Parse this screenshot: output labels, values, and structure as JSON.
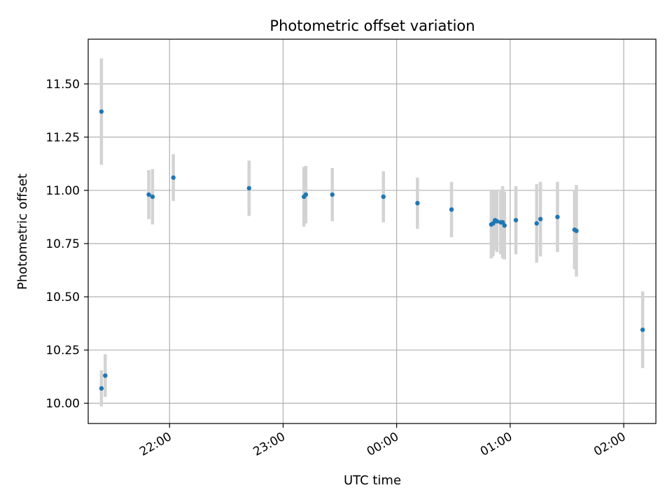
{
  "chart_data": {
    "type": "scatter",
    "title": "Photometric offset variation",
    "xlabel": "UTC time",
    "ylabel": "Photometric offset",
    "x_axis": {
      "type": "time",
      "range": [
        "21:17",
        "02:17"
      ],
      "ticks": [
        "22:00",
        "23:00",
        "00:00",
        "01:00",
        "02:00"
      ]
    },
    "y_axis": {
      "range": [
        9.905,
        11.71
      ],
      "ticks": [
        10.0,
        10.25,
        10.5,
        10.75,
        11.0,
        11.25,
        11.5
      ],
      "tick_labels": [
        "10.00",
        "10.25",
        "10.50",
        "10.75",
        "11.00",
        "11.25",
        "11.50"
      ]
    },
    "grid": true,
    "colors": {
      "point": "#1f77b4",
      "errorbar": "#d3d3d3",
      "grid": "#b0b0b0"
    },
    "points": [
      {
        "x": "21:24",
        "y": 11.37,
        "err": 0.25
      },
      {
        "x": "21:24",
        "y": 10.07,
        "err": 0.085
      },
      {
        "x": "21:26",
        "y": 10.13,
        "err": 0.1
      },
      {
        "x": "21:49",
        "y": 10.98,
        "err": 0.115
      },
      {
        "x": "21:51",
        "y": 10.97,
        "err": 0.13
      },
      {
        "x": "22:02",
        "y": 11.06,
        "err": 0.11
      },
      {
        "x": "22:42",
        "y": 11.01,
        "err": 0.13
      },
      {
        "x": "23:11",
        "y": 10.97,
        "err": 0.14
      },
      {
        "x": "23:12",
        "y": 10.98,
        "err": 0.135
      },
      {
        "x": "23:26",
        "y": 10.98,
        "err": 0.125
      },
      {
        "x": "23:53",
        "y": 10.97,
        "err": 0.12
      },
      {
        "x": "00:11",
        "y": 10.94,
        "err": 0.12
      },
      {
        "x": "00:29",
        "y": 10.91,
        "err": 0.13
      },
      {
        "x": "00:50",
        "y": 10.84,
        "err": 0.16
      },
      {
        "x": "00:51",
        "y": 10.845,
        "err": 0.155
      },
      {
        "x": "00:52",
        "y": 10.86,
        "err": 0.14
      },
      {
        "x": "00:53",
        "y": 10.855,
        "err": 0.145
      },
      {
        "x": "00:55",
        "y": 10.85,
        "err": 0.15
      },
      {
        "x": "00:56",
        "y": 10.85,
        "err": 0.17
      },
      {
        "x": "00:57",
        "y": 10.835,
        "err": 0.16
      },
      {
        "x": "01:03",
        "y": 10.86,
        "err": 0.16
      },
      {
        "x": "01:14",
        "y": 10.845,
        "err": 0.185
      },
      {
        "x": "01:16",
        "y": 10.865,
        "err": 0.175
      },
      {
        "x": "01:25",
        "y": 10.875,
        "err": 0.165
      },
      {
        "x": "01:34",
        "y": 10.815,
        "err": 0.185
      },
      {
        "x": "01:35",
        "y": 10.81,
        "err": 0.215
      },
      {
        "x": "02:10",
        "y": 10.345,
        "err": 0.18
      }
    ]
  }
}
